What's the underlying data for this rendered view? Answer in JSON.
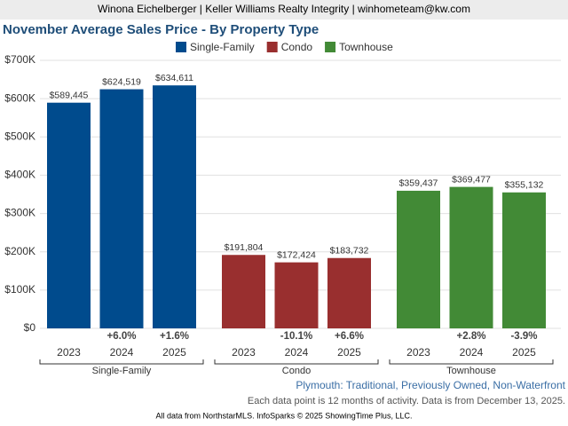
{
  "header": "Winona Eichelberger | Keller Williams Realty Integrity | winhometeam@kw.com",
  "chart_data": {
    "type": "bar",
    "title": "November Average Sales Price - By Property Type",
    "categories": [
      "2023",
      "2024",
      "2025"
    ],
    "series": [
      {
        "name": "Single-Family",
        "color": "#004b8d",
        "values": [
          589445,
          624519,
          634611
        ],
        "value_labels": [
          "$589,445",
          "$624,519",
          "$634,611"
        ],
        "change_labels": [
          null,
          "+6.0%",
          "+1.6%"
        ]
      },
      {
        "name": "Condo",
        "color": "#992f2f",
        "values": [
          191804,
          172424,
          183732
        ],
        "value_labels": [
          "$191,804",
          "$172,424",
          "$183,732"
        ],
        "change_labels": [
          null,
          "-10.1%",
          "+6.6%"
        ]
      },
      {
        "name": "Townhouse",
        "color": "#428a36",
        "values": [
          359437,
          369477,
          355132
        ],
        "value_labels": [
          "$359,437",
          "$369,477",
          "$355,132"
        ],
        "change_labels": [
          null,
          "+2.8%",
          "-3.9%"
        ]
      }
    ],
    "ylim": [
      0,
      700000
    ],
    "yticks": [
      {
        "value": 0,
        "label": "$0"
      },
      {
        "value": 100000,
        "label": "$100K"
      },
      {
        "value": 200000,
        "label": "$200K"
      },
      {
        "value": 300000,
        "label": "$300K"
      },
      {
        "value": 400000,
        "label": "$400K"
      },
      {
        "value": 500000,
        "label": "$500K"
      },
      {
        "value": 600000,
        "label": "$600K"
      },
      {
        "value": 700000,
        "label": "$700K"
      }
    ],
    "grid": true,
    "subtitle": "Plymouth: Traditional, Previously Owned, Non-Waterfront",
    "note": "Each data point is 12 months of activity. Data is from December 13, 2025.",
    "source": "All data from NorthstarMLS. InfoSparks © 2025 ShowingTime Plus, LLC."
  }
}
